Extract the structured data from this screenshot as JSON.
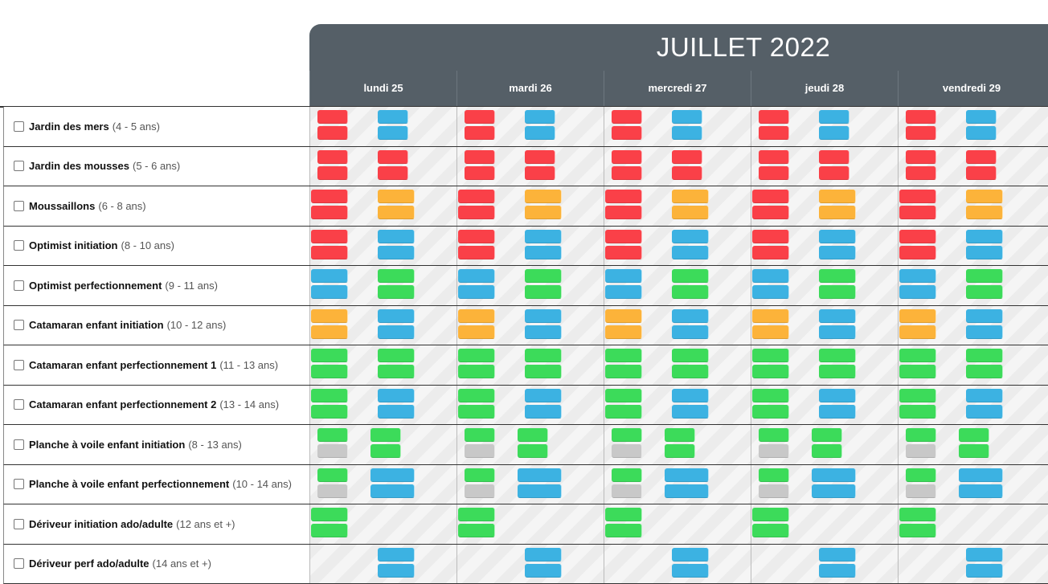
{
  "colors": {
    "red": "#fa4048",
    "blue": "#3cb2e2",
    "green": "#3cdb5a",
    "orange": "#fcb33a",
    "gray": "#c8c8c8",
    "header_bg": "#555f67"
  },
  "calendar": {
    "month": "JUILLET 2022",
    "days": [
      "lundi 25",
      "mardi 26",
      "mercredi 27",
      "jeudi 28",
      "vendredi 29"
    ]
  },
  "activities": [
    {
      "name": "Jardin des mers",
      "age": "(4 - 5 ans)",
      "slots": [
        [
          "red",
          "red"
        ],
        [
          "blue",
          "blue"
        ]
      ],
      "style": "a"
    },
    {
      "name": "Jardin des mousses",
      "age": "(5 - 6 ans)",
      "slots": [
        [
          "red",
          "red"
        ],
        [
          "red",
          "red"
        ]
      ],
      "style": "a"
    },
    {
      "name": "Moussaillons",
      "age": "(6 - 8 ans)",
      "slots": [
        [
          "red",
          "red"
        ],
        [
          "orange",
          "orange"
        ]
      ],
      "style": "b"
    },
    {
      "name": "Optimist initiation",
      "age": "(8 - 10 ans)",
      "slots": [
        [
          "red",
          "red"
        ],
        [
          "blue",
          "blue"
        ]
      ],
      "style": "b"
    },
    {
      "name": "Optimist perfectionnement",
      "age": "(9 - 11 ans)",
      "slots": [
        [
          "blue",
          "blue"
        ],
        [
          "green",
          "green"
        ]
      ],
      "style": "b"
    },
    {
      "name": "Catamaran enfant initiation",
      "age": "(10 - 12 ans)",
      "slots": [
        [
          "orange",
          "orange"
        ],
        [
          "blue",
          "blue"
        ]
      ],
      "style": "b"
    },
    {
      "name": "Catamaran enfant perfectionnement 1",
      "age": "(11 - 13 ans)",
      "slots": [
        [
          "green",
          "green"
        ],
        [
          "green",
          "green"
        ]
      ],
      "style": "b"
    },
    {
      "name": "Catamaran enfant perfectionnement 2",
      "age": "(13 - 14 ans)",
      "slots": [
        [
          "green",
          "green"
        ],
        [
          "blue",
          "blue"
        ]
      ],
      "style": "b"
    },
    {
      "name": "Planche à voile enfant initiation",
      "age": "(8 - 13 ans)",
      "slots": [
        [
          "green",
          "gray"
        ],
        [
          "green",
          "green"
        ]
      ],
      "style": "c"
    },
    {
      "name": "Planche à voile enfant perfectionnement",
      "age": "(10 - 14 ans)",
      "slots": [
        [
          "green",
          "gray"
        ],
        [
          "blue",
          "blue"
        ]
      ],
      "style": "d"
    },
    {
      "name": "Dériveur initiation ado/adulte",
      "age": "(12 ans et +)",
      "slots": [
        [
          "green",
          "green"
        ]
      ],
      "style": "e"
    },
    {
      "name": "Dériveur perf ado/adulte",
      "age": "(14 ans et +)",
      "slots": [
        [
          "blue",
          "blue"
        ]
      ],
      "style": "f"
    }
  ]
}
